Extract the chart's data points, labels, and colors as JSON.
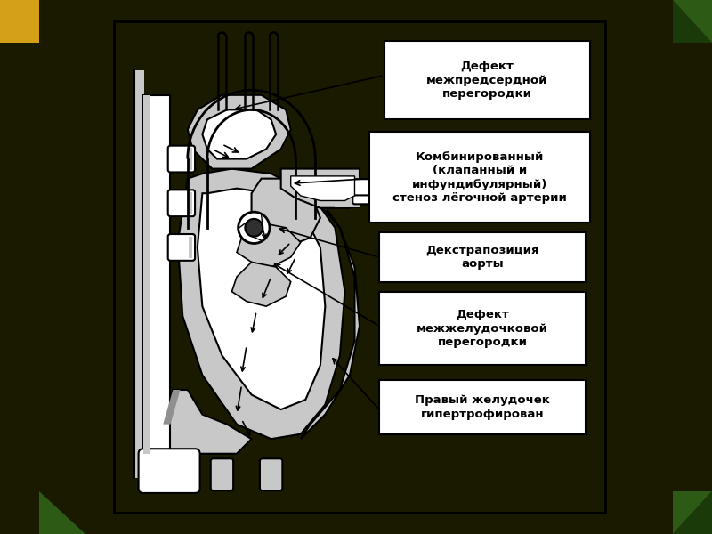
{
  "bg_outer": "#1a1a00",
  "bg_yellow": "#d4a017",
  "bg_green_dark": "#1a3a0a",
  "bg_green_mid": "#2d5a15",
  "white": "#ffffff",
  "black": "#000000",
  "gray_dark": "#808080",
  "gray_med": "#a0a0a0",
  "gray_light": "#c8c8c8",
  "label1": "Дефект\nмежпредсердной\nперегородки",
  "label2": "Комбинированный\n(клапанный и\nинфундибулярный)\nстеноз лёгочной артерии",
  "label3": "Декстрапозиция\nаорты",
  "label4": "Дефект\nмежжелудочковой\nперегородки",
  "label5": "Правый желудочек\nгипертрофирован"
}
